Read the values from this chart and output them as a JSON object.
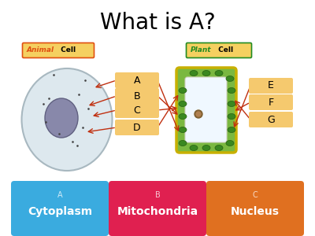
{
  "title": "What is A?",
  "title_fontsize": 20,
  "background_color": "#ffffff",
  "label_boxes_left": [
    "A",
    "B",
    "C",
    "D"
  ],
  "label_boxes_right": [
    "E",
    "F",
    "G"
  ],
  "answer_boxes": [
    {
      "letter": "A",
      "text": "Cytoplasm",
      "color": "#3aabdf"
    },
    {
      "letter": "B",
      "text": "Mitochondria",
      "color": "#e02050"
    },
    {
      "letter": "C",
      "text": "Nucleus",
      "color": "#e07020"
    }
  ],
  "box_color": "#f5c96e",
  "label_bg": "#f5d060",
  "animal_italic_color": "#e05010",
  "plant_italic_color": "#228B22",
  "arrow_color": "#c03010",
  "arrow_tan_color": "#c8a050"
}
